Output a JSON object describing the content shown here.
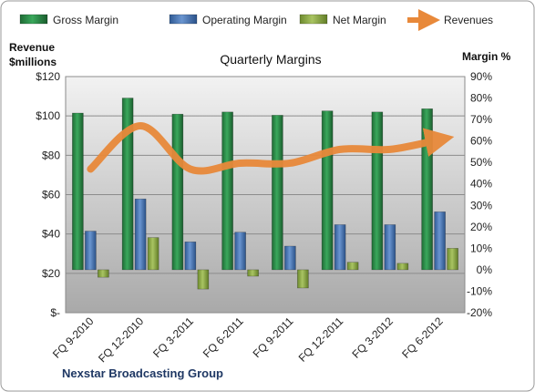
{
  "chart_data": {
    "type": "bar",
    "title": "Quarterly Margins",
    "footer": "Nexstar Broadcasting Group",
    "left_axis": {
      "title_line1": "Revenue",
      "title_line2": "$millions",
      "range": [
        0,
        120
      ],
      "step": 20,
      "tick_labels": [
        "$-",
        "$20",
        "$40",
        "$60",
        "$80",
        "$100",
        "$120"
      ]
    },
    "right_axis": {
      "title": "Margin %",
      "range": [
        -20,
        90
      ],
      "step": 10,
      "tick_labels": [
        "-20%",
        "-10%",
        "0%",
        "10%",
        "20%",
        "30%",
        "40%",
        "50%",
        "60%",
        "70%",
        "80%",
        "90%"
      ]
    },
    "categories": [
      "FQ 9-2010",
      "FQ 12-2010",
      "FQ 3-2011",
      "FQ 6-2011",
      "FQ 9-2011",
      "FQ 12-2011",
      "FQ 3-2012",
      "FQ 6-2012"
    ],
    "series": [
      {
        "name": "Gross Margin",
        "axis": "right",
        "color": "#2e8b4a",
        "values": [
          73,
          80,
          72.5,
          73.5,
          72,
          74,
          73.5,
          75
        ]
      },
      {
        "name": "Operating Margin",
        "axis": "right",
        "color": "#4f7fbf",
        "values": [
          18,
          33,
          13,
          17.5,
          11,
          21,
          21,
          27
        ]
      },
      {
        "name": "Net Margin",
        "axis": "right",
        "color": "#93b04a",
        "values": [
          -3.5,
          15,
          -9,
          -3,
          -8.5,
          3.5,
          3,
          10
        ]
      },
      {
        "name": "Revenues",
        "axis": "left",
        "type": "line",
        "color": "#e8893a",
        "values": [
          73,
          95,
          73,
          76,
          76,
          83,
          83,
          88
        ]
      }
    ],
    "legend_position": "top",
    "grid": true
  }
}
